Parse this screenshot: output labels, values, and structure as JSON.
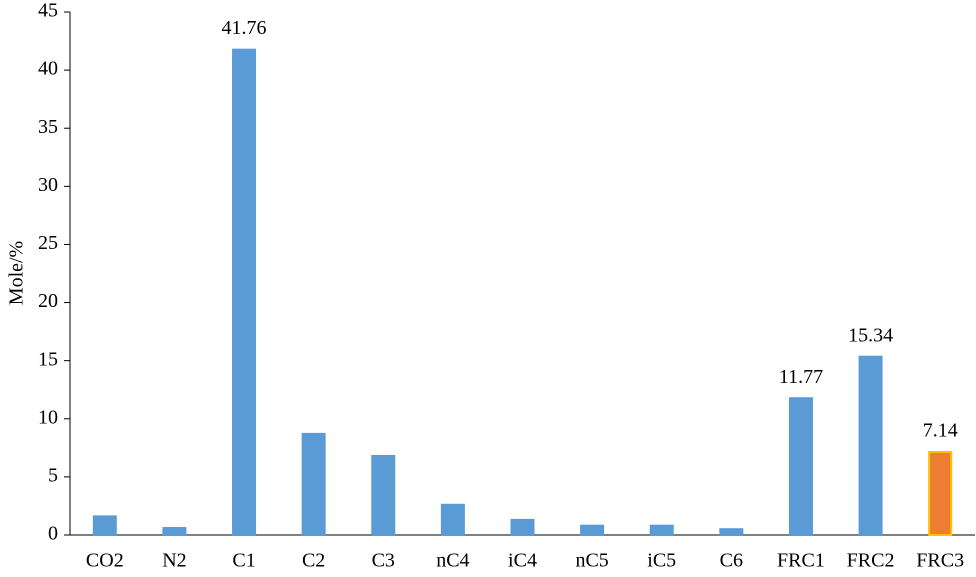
{
  "chart_data": {
    "type": "bar",
    "y_label": "Mole/%",
    "categories": [
      "CO2",
      "N2",
      "C1",
      "C2",
      "C3",
      "nC4",
      "iC4",
      "nC5",
      "iC5",
      "C6",
      "FRC1",
      "FRC2",
      "FRC3"
    ],
    "values": [
      1.6,
      0.6,
      41.76,
      8.7,
      6.8,
      2.6,
      1.3,
      0.8,
      0.8,
      0.5,
      11.77,
      15.34,
      7.14
    ],
    "value_labels": [
      null,
      null,
      "41.76",
      null,
      null,
      null,
      null,
      null,
      null,
      null,
      "11.77",
      "15.34",
      "7.14"
    ],
    "colors": [
      "#5b9bd5",
      "#5b9bd5",
      "#5b9bd5",
      "#5b9bd5",
      "#5b9bd5",
      "#5b9bd5",
      "#5b9bd5",
      "#5b9bd5",
      "#5b9bd5",
      "#5b9bd5",
      "#5b9bd5",
      "#5b9bd5",
      "#ed7d31"
    ],
    "edgecolors": [
      "#5b9bd5",
      "#5b9bd5",
      "#5b9bd5",
      "#5b9bd5",
      "#5b9bd5",
      "#5b9bd5",
      "#5b9bd5",
      "#5b9bd5",
      "#5b9bd5",
      "#5b9bd5",
      "#5b9bd5",
      "#5b9bd5",
      "#ffc000"
    ],
    "ylim": [
      0,
      45
    ],
    "yticks": [
      0,
      5,
      10,
      15,
      20,
      25,
      30,
      35,
      40,
      45
    ],
    "grid": false
  }
}
